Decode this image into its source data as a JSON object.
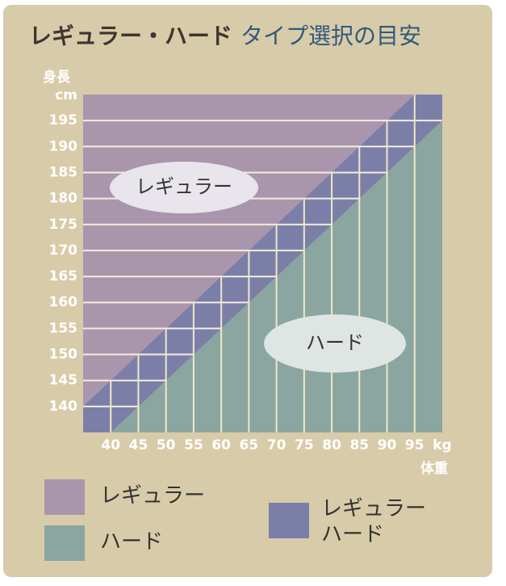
{
  "chart_data": {
    "type": "region",
    "title": "レギュラー・ハード",
    "title_accent": "タイプ選択の目安",
    "y_label": "身長",
    "y_unit": "cm",
    "x_unit": "kg",
    "x_label": "体重",
    "xlim": [
      35,
      100
    ],
    "ylim": [
      135,
      200
    ],
    "xticks": [
      40,
      45,
      50,
      55,
      60,
      65,
      70,
      75,
      80,
      85,
      90,
      95
    ],
    "yticks": [
      140,
      145,
      150,
      155,
      160,
      165,
      170,
      175,
      180,
      185,
      190,
      195
    ],
    "series": [
      {
        "name": "レギュラー",
        "color": "#a996ad",
        "region": "above",
        "boundary": {
          "x": [
            35,
            95
          ],
          "y": [
            140,
            200
          ]
        }
      },
      {
        "name": "ハード",
        "color": "#8ba6a0",
        "region": "below",
        "boundary": {
          "x": [
            40,
            100
          ],
          "y": [
            135,
            195
          ]
        }
      },
      {
        "name": [
          "レギュラー",
          "ハード"
        ],
        "color": "#7b7fa8",
        "region": "between"
      }
    ]
  }
}
